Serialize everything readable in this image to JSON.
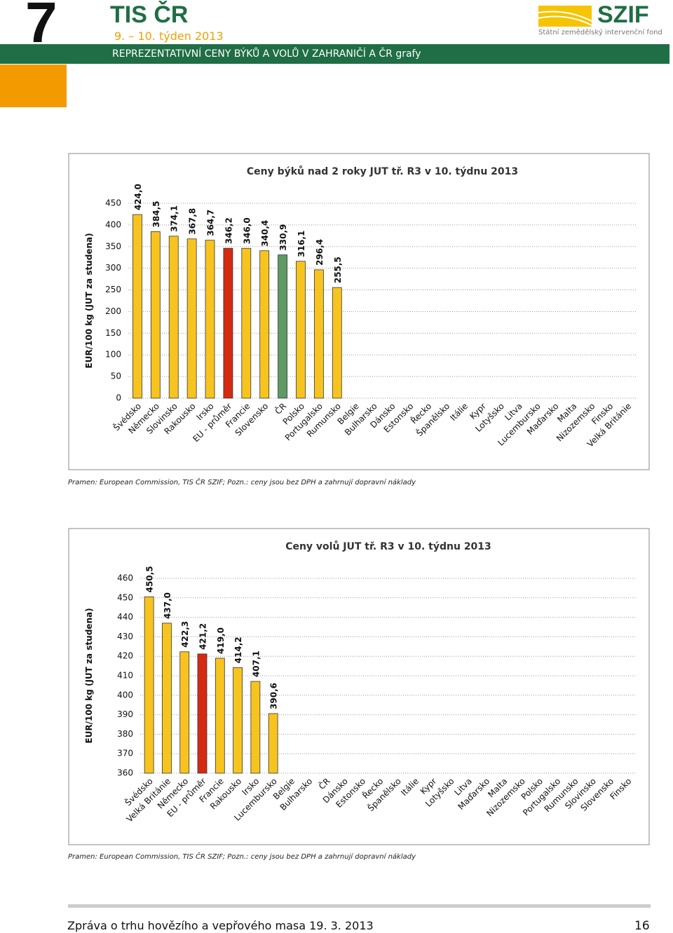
{
  "header": {
    "number": "7",
    "brand": "TIS ČR",
    "week": "9. – 10. týden  2013",
    "logo": "SZIF",
    "logo_sub": "Státní zemědělský intervenční fond",
    "section": "REPREZENTATIVNÍ CENY BÝKŮ A VOLŮ  V ZAHRANIČÍ  A  ČR   grafy"
  },
  "chart_data": [
    {
      "type": "bar",
      "title": "Ceny býků nad 2 roky JUT  tř. R3  v 10. týdnu 2013",
      "y_label": "EUR/100 kg (JUT za studena)",
      "categories": [
        "Švédsko",
        "Německo",
        "Slovinsko",
        "Rakousko",
        "Irsko",
        "EU - průměr",
        "Francie",
        "Slovensko",
        "ČR",
        "Polsko",
        "Portugalsko",
        "Rumunsko",
        "Belgie",
        "Bulharsko",
        "Dánsko",
        "Estonsko",
        "Řecko",
        "Španělsko",
        "Itálie",
        "Kypr",
        "Lotyšsko",
        "Litva",
        "Lucembursko",
        "Maďarsko",
        "Malta",
        "Nizozemsko",
        "Finsko",
        "Velká Británie"
      ],
      "values": [
        424.0,
        384.5,
        374.1,
        367.8,
        364.7,
        346.2,
        346.0,
        340.4,
        330.9,
        316.1,
        296.4,
        255.5,
        null,
        null,
        null,
        null,
        null,
        null,
        null,
        null,
        null,
        null,
        null,
        null,
        null,
        null,
        null,
        null
      ],
      "value_labels": [
        "424,0",
        "384,5",
        "374,1",
        "367,8",
        "364,7",
        "346,2",
        "346,0",
        "340,4",
        "330,9",
        "316,1",
        "296,4",
        "255,5",
        null,
        null,
        null,
        null,
        null,
        null,
        null,
        null,
        null,
        null,
        null,
        null,
        null,
        null,
        null,
        null
      ],
      "colors": [
        "#f7c41f",
        "#f7c41f",
        "#f7c41f",
        "#f7c41f",
        "#f7c41f",
        "#d42a12",
        "#f7c41f",
        "#f7c41f",
        "#5e9a63",
        "#f7c41f",
        "#f7c41f",
        "#f7c41f",
        null,
        null,
        null,
        null,
        null,
        null,
        null,
        null,
        null,
        null,
        null,
        null,
        null,
        null,
        null,
        null
      ],
      "ylim": [
        0,
        450
      ],
      "yticks": [
        0,
        50,
        100,
        150,
        200,
        250,
        300,
        350,
        400,
        450
      ],
      "grid": true
    },
    {
      "type": "bar",
      "title": "Ceny volů JUT  tř. R3  v 10. týdnu 2013",
      "y_label": "EUR/100 kg (JUT za studena)",
      "categories": [
        "Švédsko",
        "Velká Británie",
        "Německo",
        "EU - průměr",
        "Francie",
        "Rakousko",
        "Irsko",
        "Lucembursko",
        "Belgie",
        "Bulharsko",
        "ČR",
        "Dánsko",
        "Estonsko",
        "Řecko",
        "Španělsko",
        "Itálie",
        "Kypr",
        "Lotyšsko",
        "Litva",
        "Maďarsko",
        "Malta",
        "Nizozemsko",
        "Polsko",
        "Portugalsko",
        "Rumunsko",
        "Slovinsko",
        "Slovensko",
        "Finsko"
      ],
      "values": [
        450.5,
        437.0,
        422.3,
        421.2,
        419.0,
        414.2,
        407.1,
        390.6,
        null,
        null,
        null,
        null,
        null,
        null,
        null,
        null,
        null,
        null,
        null,
        null,
        null,
        null,
        null,
        null,
        null,
        null,
        null,
        null
      ],
      "value_labels": [
        "450,5",
        "437,0",
        "422,3",
        "421,2",
        "419,0",
        "414,2",
        "407,1",
        "390,6",
        null,
        null,
        null,
        null,
        null,
        null,
        null,
        null,
        null,
        null,
        null,
        null,
        null,
        null,
        null,
        null,
        null,
        null,
        null,
        null
      ],
      "colors": [
        "#f7c41f",
        "#f7c41f",
        "#f7c41f",
        "#d42a12",
        "#f7c41f",
        "#f7c41f",
        "#f7c41f",
        "#f7c41f",
        null,
        null,
        null,
        null,
        null,
        null,
        null,
        null,
        null,
        null,
        null,
        null,
        null,
        null,
        null,
        null,
        null,
        null,
        null,
        null
      ],
      "ylim": [
        360,
        460
      ],
      "yticks": [
        360,
        370,
        380,
        390,
        400,
        410,
        420,
        430,
        440,
        450,
        460
      ],
      "grid": true
    }
  ],
  "sources": [
    "Pramen: European Commission, TIS ČR SZIF; Pozn.:  ceny jsou bez DPH a zahrnují dopravní náklady",
    "Pramen: European Commission, TIS ČR SZIF; Pozn.:  ceny jsou bez DPH a zahrnují dopravní náklady"
  ],
  "footer": {
    "text": "Zpráva o trhu hovězího a vepřového masa 19. 3. 2013",
    "page": "16"
  }
}
